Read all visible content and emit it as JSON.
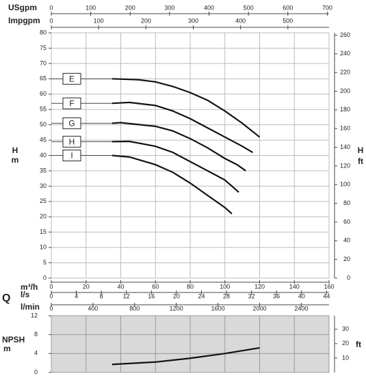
{
  "chart_data": [
    {
      "type": "line",
      "flow_label": "Q",
      "xlabel": "m³/h",
      "xlim": [
        0,
        160
      ],
      "xticks": [
        0,
        20,
        40,
        60,
        80,
        100,
        120,
        140,
        160
      ],
      "x_axes": [
        {
          "label": "USgpm",
          "lim": [
            0,
            704.5
          ],
          "ticks": [
            0,
            100,
            200,
            300,
            400,
            500,
            600,
            700
          ],
          "side": "top"
        },
        {
          "label": "Impgpm",
          "lim": [
            0,
            587
          ],
          "ticks": [
            0,
            100,
            200,
            300,
            400,
            500
          ],
          "side": "top"
        },
        {
          "label": "l/s",
          "lim": [
            0,
            44.4
          ],
          "ticks": [
            0,
            4,
            8,
            12,
            16,
            20,
            24,
            28,
            32,
            36,
            40,
            44
          ],
          "side": "bottom"
        },
        {
          "label": "l/min",
          "lim": [
            0,
            2667
          ],
          "ticks": [
            0,
            400,
            800,
            1200,
            1600,
            2000,
            2400
          ],
          "side": "bottom"
        }
      ],
      "ylabel": "H",
      "yunit": "m",
      "ylim": [
        0,
        80
      ],
      "yticks": [
        0,
        5,
        10,
        15,
        20,
        25,
        30,
        35,
        40,
        45,
        50,
        55,
        60,
        65,
        70,
        75,
        80
      ],
      "y2label": "H",
      "y2unit": "ft",
      "y2lim": [
        0,
        262.5
      ],
      "y2ticks": [
        0,
        20,
        40,
        60,
        80,
        100,
        120,
        140,
        160,
        180,
        200,
        220,
        240,
        260
      ],
      "grid": true,
      "series": [
        {
          "name": "E",
          "color": "#111111",
          "x": [
            35,
            50,
            60,
            70,
            80,
            90,
            100,
            110,
            120
          ],
          "values": [
            65,
            64.7,
            64,
            62.5,
            60.5,
            58,
            54.5,
            50.5,
            46
          ]
        },
        {
          "name": "F",
          "color": "#111111",
          "x": [
            35,
            45,
            60,
            70,
            80,
            90,
            100,
            110,
            116
          ],
          "values": [
            57,
            57.3,
            56.3,
            54.5,
            52,
            49,
            46,
            43,
            41
          ]
        },
        {
          "name": "G",
          "color": "#111111",
          "x": [
            35,
            40,
            60,
            70,
            80,
            90,
            100,
            107,
            112
          ],
          "values": [
            50.5,
            50.7,
            49.5,
            48,
            45.5,
            42.5,
            39,
            37,
            35
          ]
        },
        {
          "name": "H",
          "color": "#111111",
          "x": [
            35,
            45,
            60,
            70,
            80,
            90,
            100,
            108
          ],
          "values": [
            44.5,
            44.6,
            43,
            41,
            38,
            35,
            32,
            28
          ]
        },
        {
          "name": "I",
          "color": "#111111",
          "x": [
            35,
            45,
            60,
            70,
            80,
            90,
            100,
            104
          ],
          "values": [
            40,
            39.5,
            37,
            34.5,
            31,
            27,
            23,
            21
          ]
        }
      ]
    },
    {
      "type": "line",
      "xlim": [
        0,
        160
      ],
      "ylabel": "NPSH",
      "yunit": "m",
      "ylim": [
        0,
        12
      ],
      "yticks": [
        0,
        4,
        8,
        12
      ],
      "y2unit": "ft",
      "y2lim": [
        0,
        39.4
      ],
      "y2ticks": [
        10,
        20,
        30
      ],
      "background": "#d9d9d9",
      "series": [
        {
          "color": "#111111",
          "x": [
            35,
            60,
            80,
            100,
            120
          ],
          "values": [
            1.7,
            2.2,
            3,
            4,
            5.2
          ]
        }
      ]
    }
  ]
}
